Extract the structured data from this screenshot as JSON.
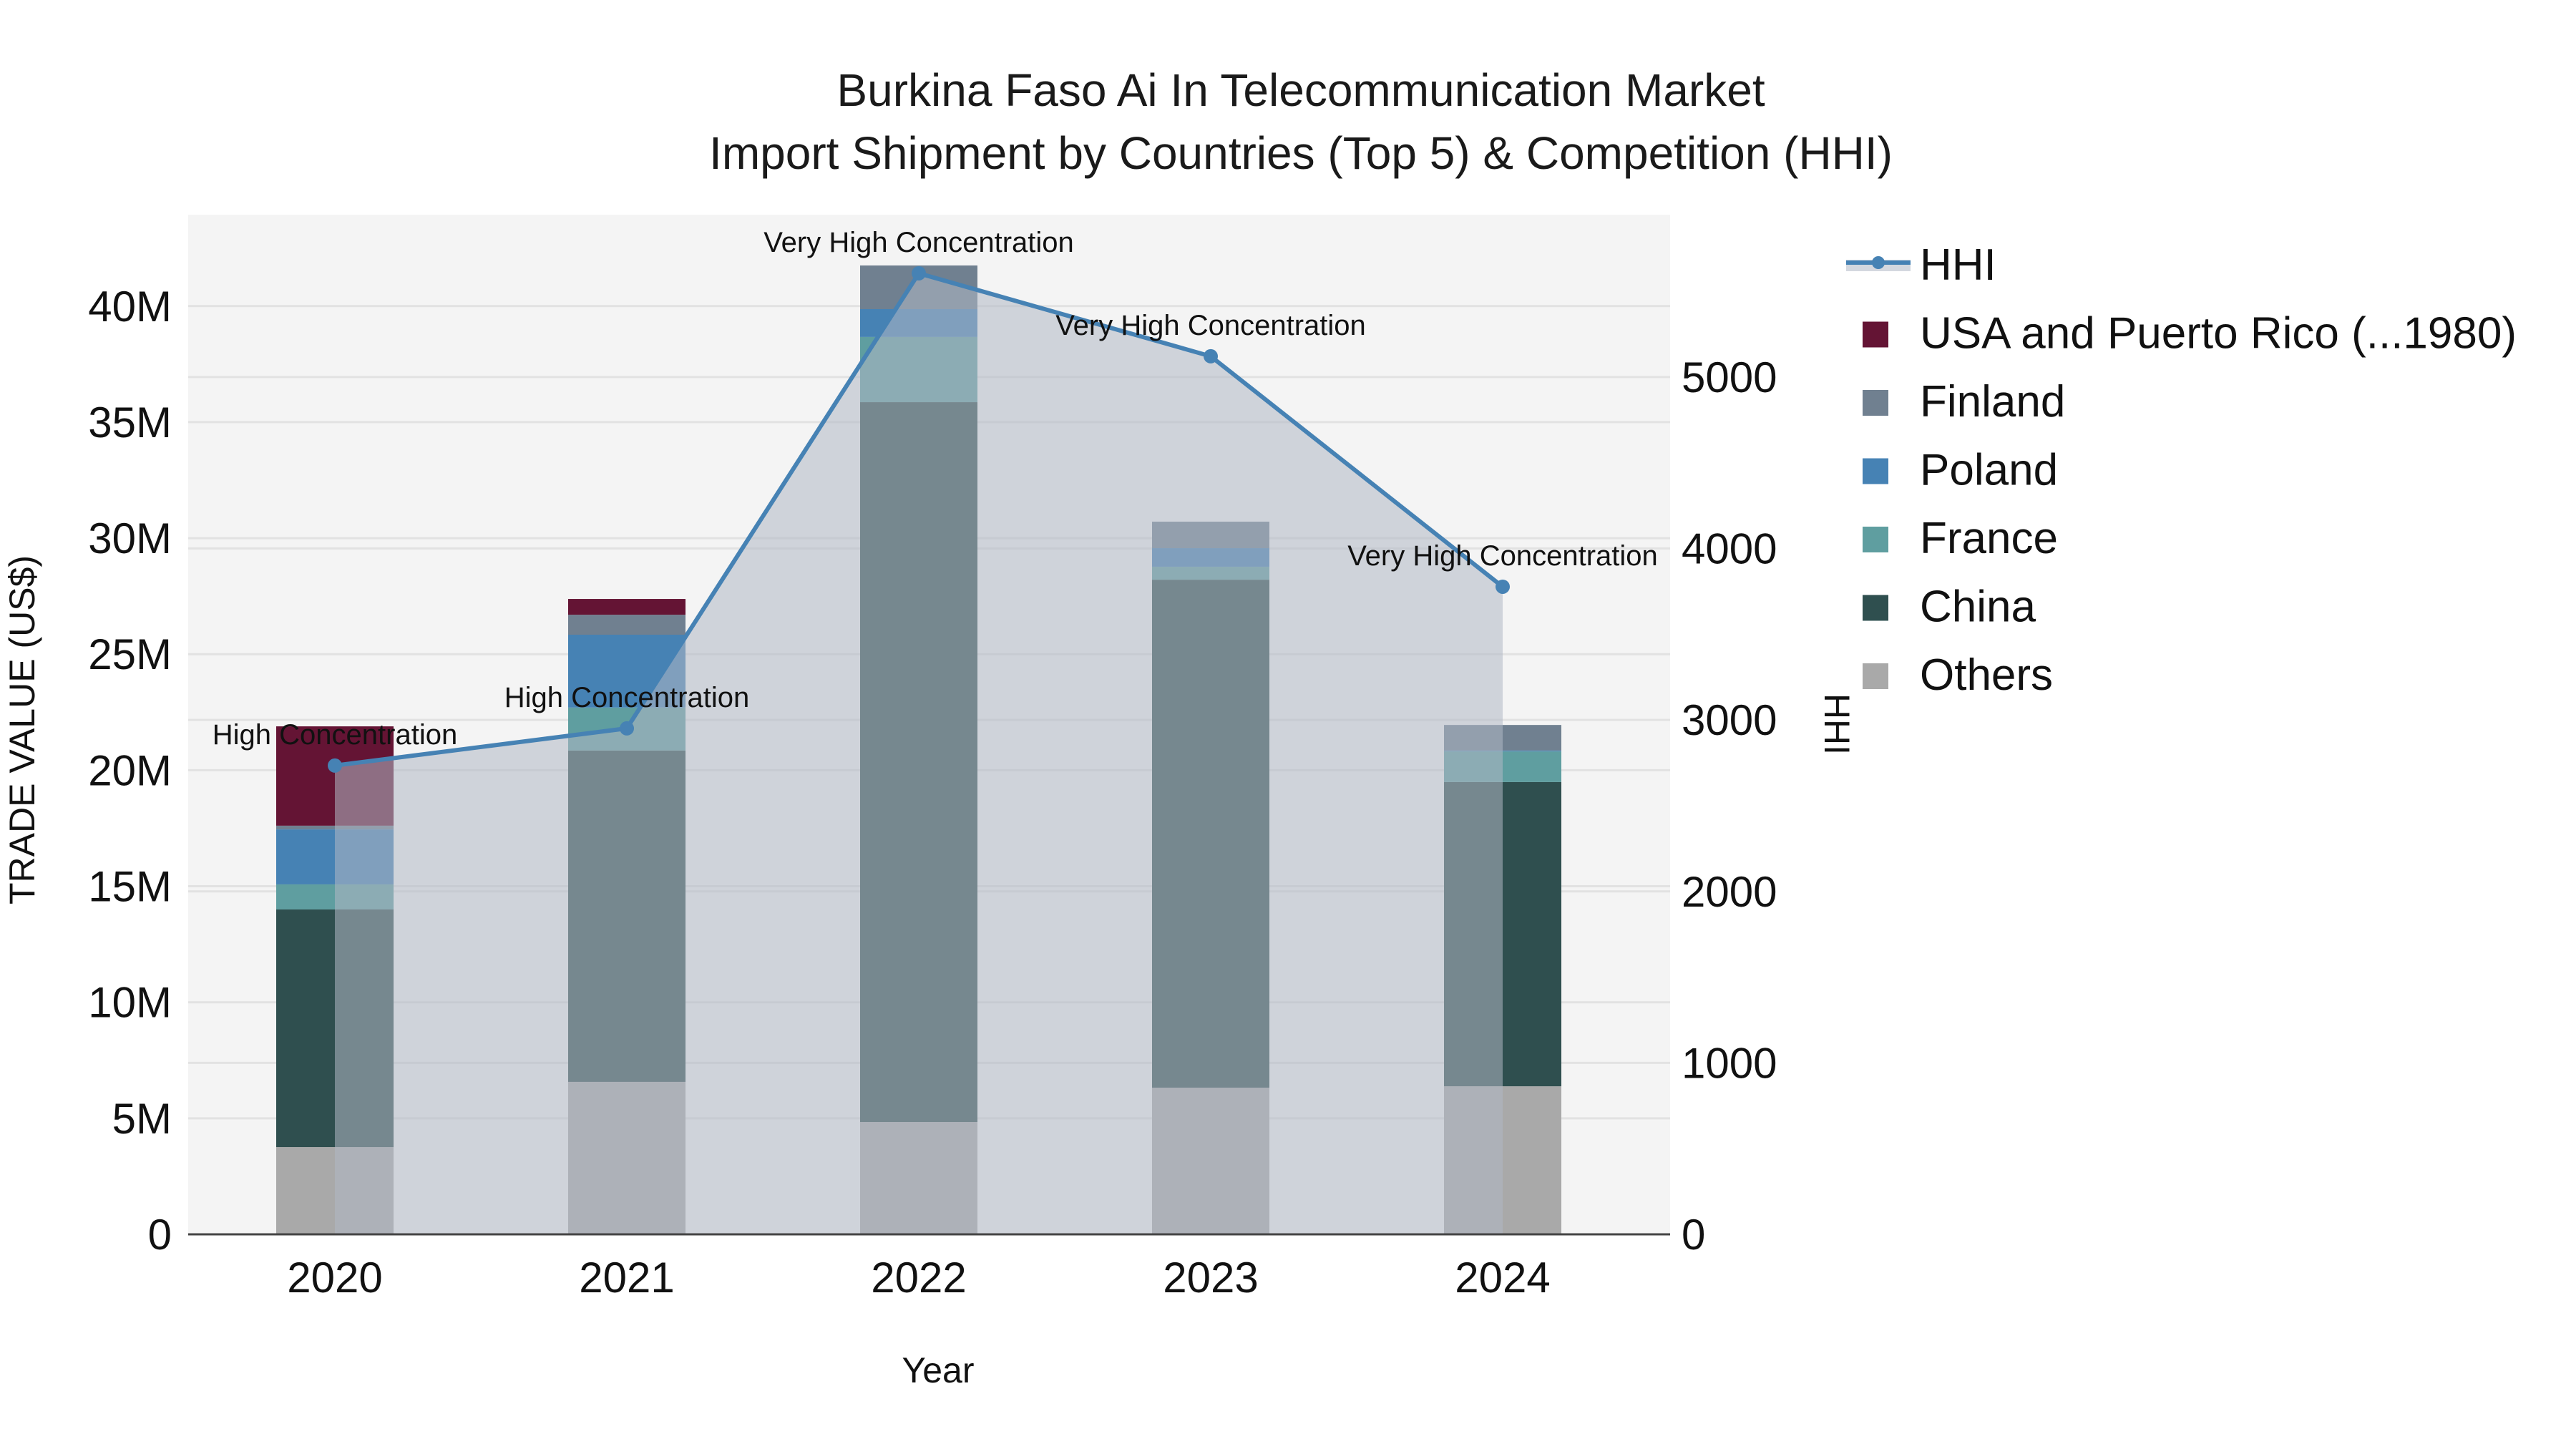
{
  "title": {
    "line1": "Burkina Faso Ai In Telecommunication Market",
    "line2": "Import Shipment by Countries (Top 5) & Competition (HHI)"
  },
  "axes": {
    "x_title": "Year",
    "y_title": "TRADE VALUE (US$)",
    "y2_title": "HHI",
    "y_ticks": [
      "0",
      "5M",
      "10M",
      "15M",
      "20M",
      "25M",
      "30M",
      "35M",
      "40M"
    ],
    "y2_ticks": [
      "0",
      "1000",
      "2000",
      "3000",
      "4000",
      "5000"
    ]
  },
  "legend": {
    "items": [
      {
        "label": "HHI",
        "type": "line",
        "color": "#4682B4"
      },
      {
        "label": "USA and Puerto Rico (...1980)",
        "type": "box",
        "color": "#641434"
      },
      {
        "label": "Finland",
        "type": "box",
        "color": "#708090"
      },
      {
        "label": "Poland",
        "type": "box",
        "color": "#4682B4"
      },
      {
        "label": "France",
        "type": "box",
        "color": "#5F9EA0"
      },
      {
        "label": "China",
        "type": "box",
        "color": "#2F4F4F"
      },
      {
        "label": "Others",
        "type": "box",
        "color": "#A9A9A9"
      }
    ]
  },
  "colors": {
    "plot_bg": "#F4F4F4",
    "grid": "#E2E2E2",
    "hhi_line": "#4682B4",
    "hhi_fill": "rgba(176,184,196,0.55)",
    "axis_line": "#444444"
  },
  "chart_data": {
    "type": "bar",
    "stacked": true,
    "title": "Burkina Faso Ai In Telecommunication Market — Import Shipment by Countries (Top 5) & Competition (HHI)",
    "xlabel": "Year",
    "ylabel": "TRADE VALUE (US$)",
    "y2label": "HHI",
    "categories": [
      "2020",
      "2021",
      "2022",
      "2023",
      "2024"
    ],
    "ylim": [
      0,
      43940000
    ],
    "y2lim": [
      0,
      5947
    ],
    "grid": true,
    "legend_position": "right",
    "series": [
      {
        "name": "Others",
        "color": "#A9A9A9",
        "values": [
          3760000,
          6570000,
          4840000,
          6320000,
          6380000
        ]
      },
      {
        "name": "China",
        "color": "#2F4F4F",
        "values": [
          10240000,
          14280000,
          31020000,
          21890000,
          13110000
        ]
      },
      {
        "name": "France",
        "color": "#5F9EA0",
        "values": [
          1080000,
          1850000,
          2810000,
          560000,
          1320000
        ]
      },
      {
        "name": "Poland",
        "color": "#4682B4",
        "values": [
          2370000,
          3140000,
          1200000,
          800000,
          40000
        ]
      },
      {
        "name": "Finland",
        "color": "#708090",
        "values": [
          160000,
          860000,
          1880000,
          1140000,
          1100000
        ]
      },
      {
        "name": "USA and Puerto Rico (...1980)",
        "color": "#641434",
        "values": [
          4280000,
          680000,
          0,
          0,
          0
        ]
      }
    ],
    "hhi": {
      "name": "HHI",
      "type": "line+area",
      "values": [
        2734,
        2951,
        5605,
        5121,
        3777
      ],
      "annotations": [
        "High Concentration",
        "High Concentration",
        "Very High Concentration",
        "Very High Concentration",
        "Very High Concentration"
      ]
    }
  }
}
